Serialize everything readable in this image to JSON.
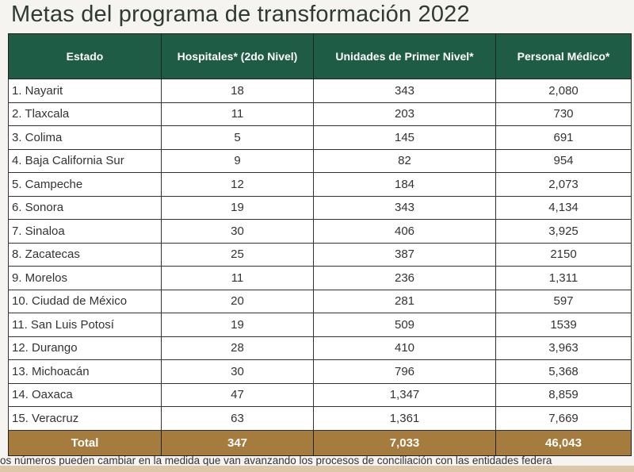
{
  "title": "Metas del programa de transformación 2022",
  "headers": [
    "Estado",
    "Hospitales* (2do Nivel)",
    "Unidades de Primer Nivel*",
    "Personal Médico*"
  ],
  "rows": [
    [
      "1. Nayarit",
      "18",
      "343",
      "2,080"
    ],
    [
      "2. Tlaxcala",
      "11",
      "203",
      "730"
    ],
    [
      "3. Colima",
      "5",
      "145",
      "691"
    ],
    [
      "4. Baja California Sur",
      "9",
      "82",
      "954"
    ],
    [
      "5. Campeche",
      "12",
      "184",
      "2,073"
    ],
    [
      "6. Sonora",
      "19",
      "343",
      "4,134"
    ],
    [
      "7. Sinaloa",
      "30",
      "406",
      "3,925"
    ],
    [
      "8. Zacatecas",
      "25",
      "387",
      "2150"
    ],
    [
      "9. Morelos",
      "11",
      "236",
      "1,311"
    ],
    [
      "10. Ciudad de México",
      "20",
      "281",
      "597"
    ],
    [
      "11. San Luis Potosí",
      "19",
      "509",
      "1539"
    ],
    [
      "12. Durango",
      "28",
      "410",
      "3,963"
    ],
    [
      "13. Michoacán",
      "30",
      "796",
      "5,368"
    ],
    [
      "14. Oaxaca",
      "47",
      "1,347",
      "8,859"
    ],
    [
      "15. Veracruz",
      "63",
      "1,361",
      "7,669"
    ]
  ],
  "total": [
    "Total",
    "347",
    "7,033",
    "46,043"
  ],
  "footnote": "os números pueden cambiar en la medida que van avanzando los procesos de conciliación con las entidades federa"
}
